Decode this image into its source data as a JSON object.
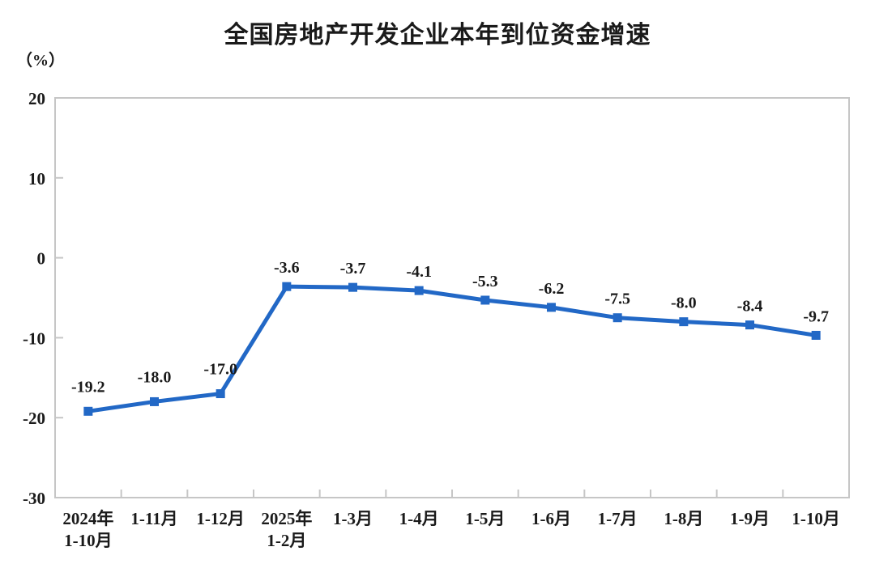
{
  "page": {
    "title": "全国房地产开发企业本年到位资金增速",
    "unit_label": "（%）"
  },
  "chart_data": {
    "type": "line",
    "title": "全国房地产开发企业本年到位资金增速",
    "ylabel": "（%）",
    "xlabel": "",
    "categories": [
      [
        "2024年",
        "1-10月"
      ],
      [
        "1-11月"
      ],
      [
        "1-12月"
      ],
      [
        "2025年",
        "1-2月"
      ],
      [
        "1-3月"
      ],
      [
        "1-4月"
      ],
      [
        "1-5月"
      ],
      [
        "1-6月"
      ],
      [
        "1-7月"
      ],
      [
        "1-8月"
      ],
      [
        "1-9月"
      ],
      [
        "1-10月"
      ]
    ],
    "values": [
      -19.2,
      -18.0,
      -17.0,
      -3.6,
      -3.7,
      -4.1,
      -5.3,
      -6.2,
      -7.5,
      -8.0,
      -8.4,
      -9.7
    ],
    "point_labels": [
      "-19.2",
      "-18.0",
      "-17.0",
      "-3.6",
      "-3.7",
      "-4.1",
      "-5.3",
      "-6.2",
      "-7.5",
      "-8.0",
      "-8.4",
      "-9.7"
    ],
    "y_ticks": [
      "20",
      "10",
      "0",
      "-10",
      "-20",
      "-30"
    ],
    "ylim": [
      -30,
      20
    ],
    "grid": false,
    "legend": "none",
    "marker": "square",
    "line_color": "#2268C6",
    "axis_color": "#C6C6C6",
    "text_color": "#1A1A1A"
  }
}
